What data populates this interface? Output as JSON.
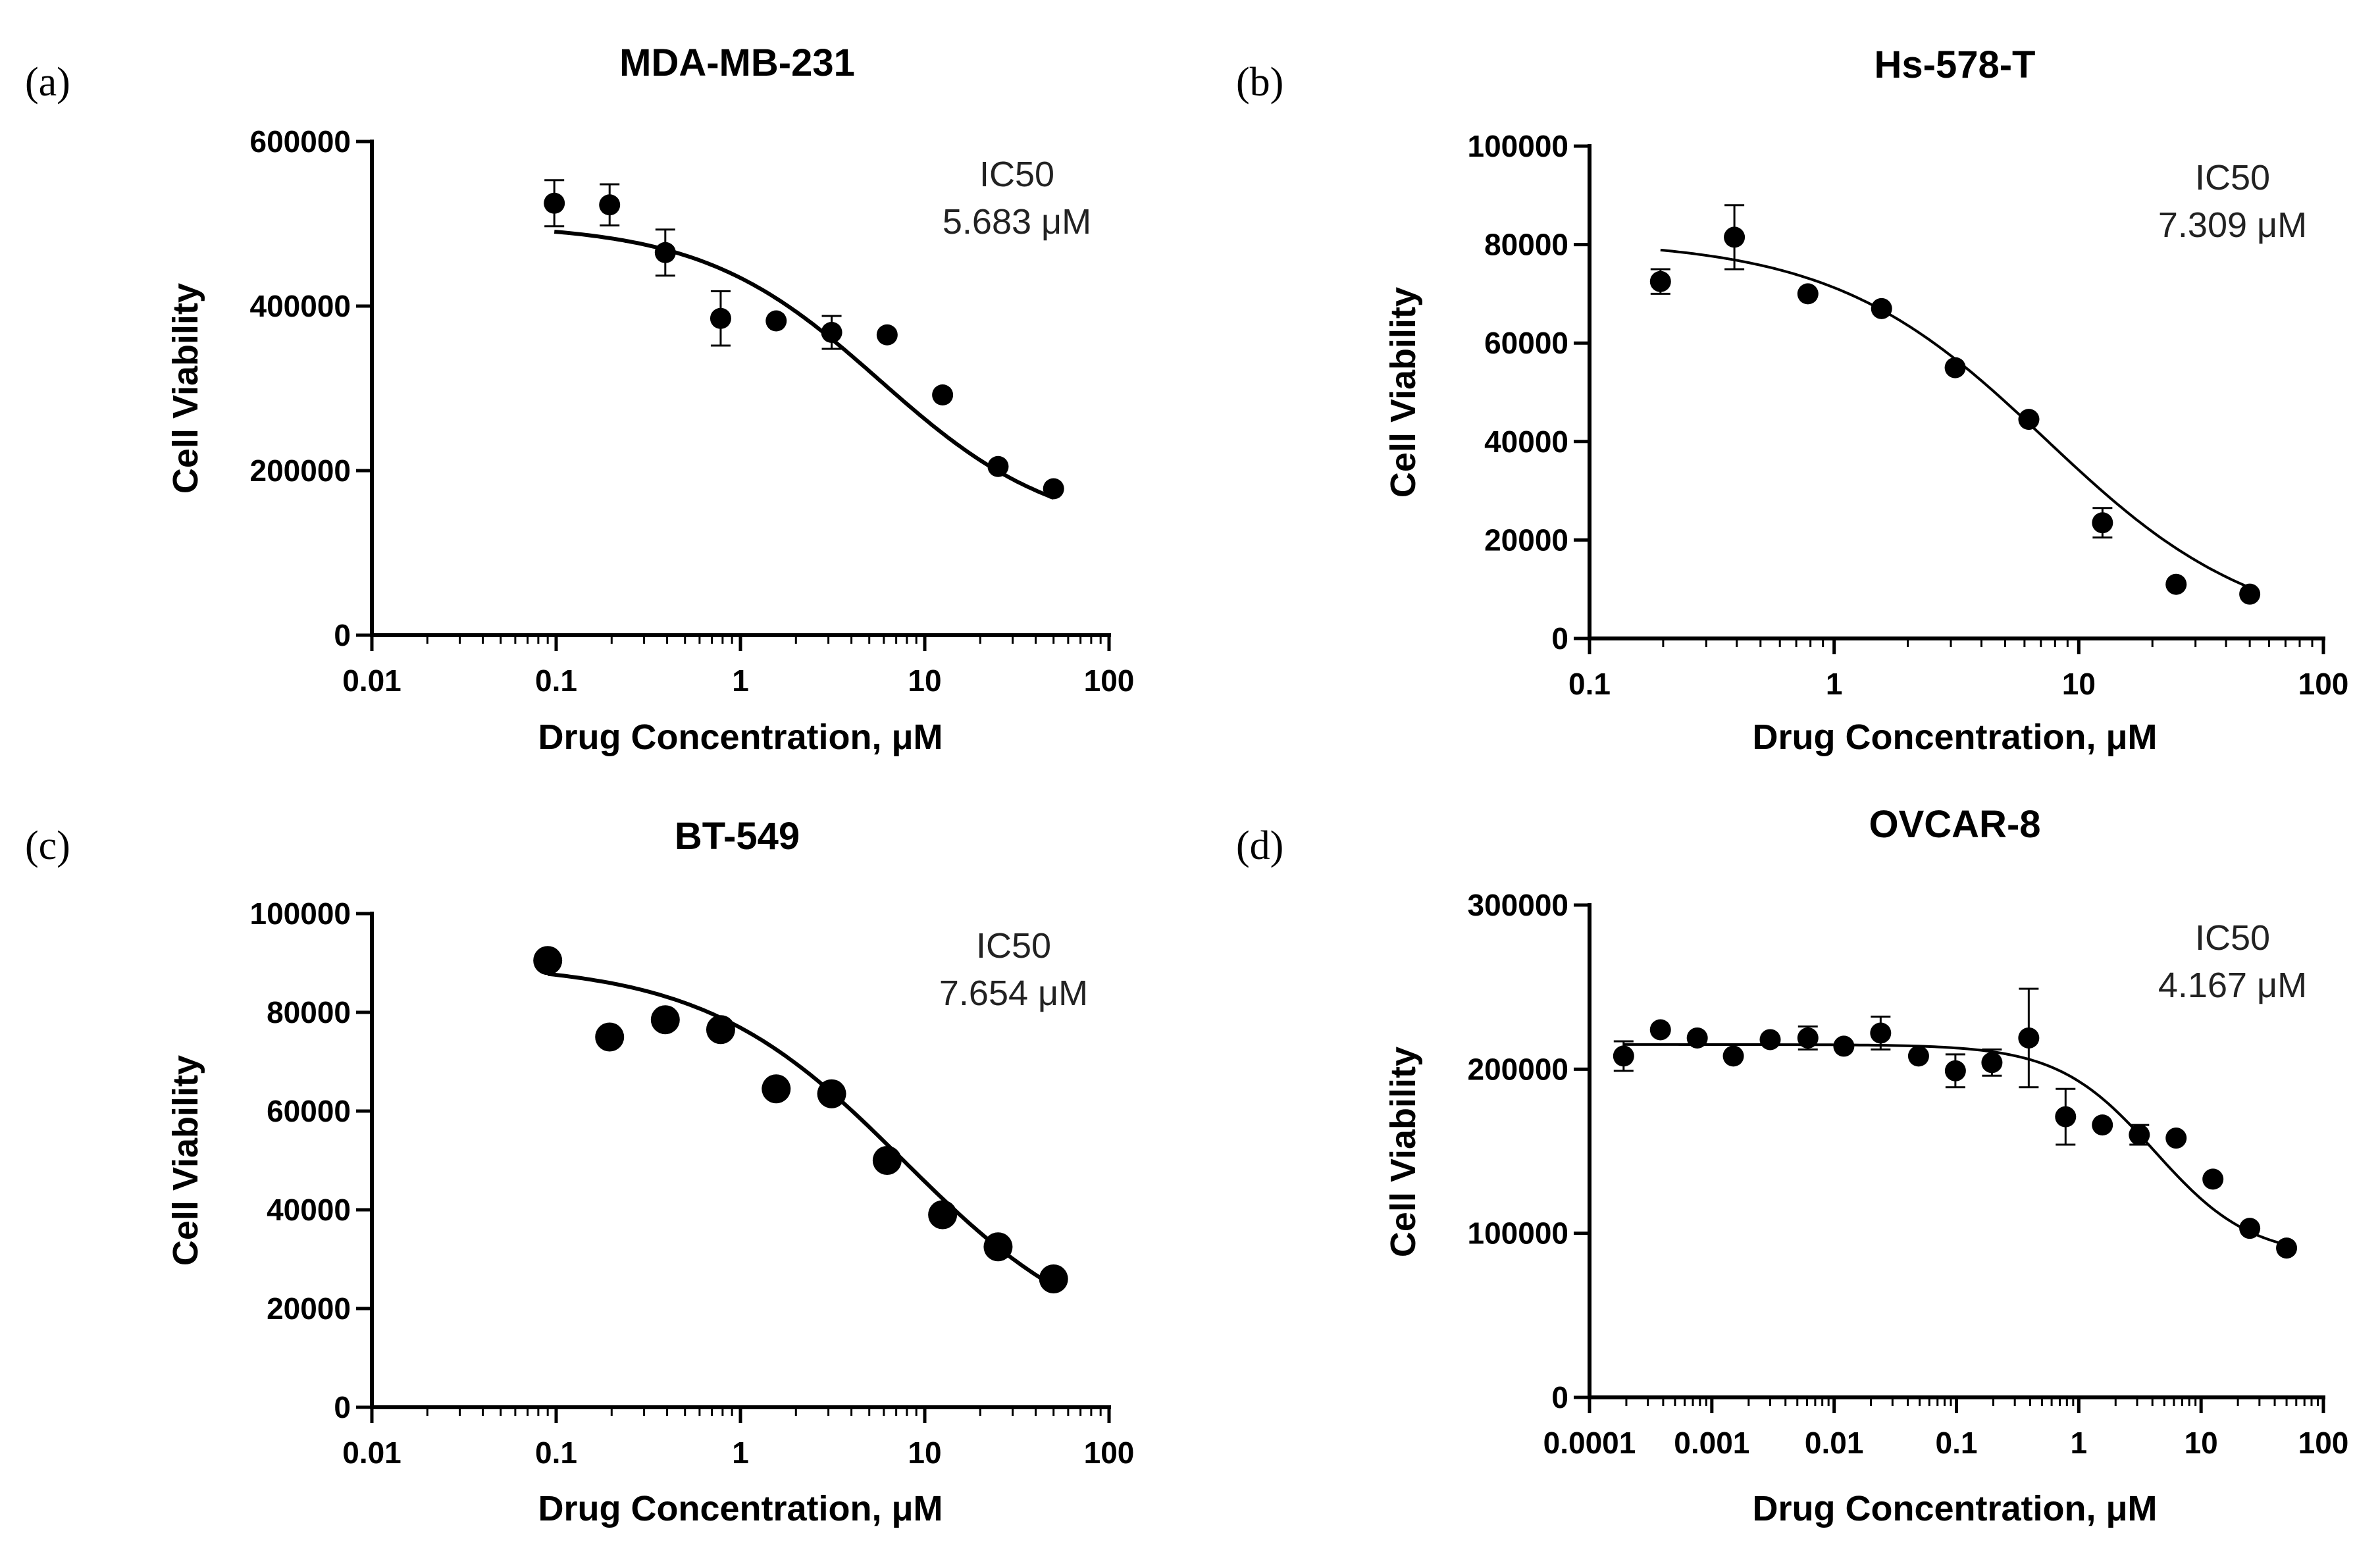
{
  "chart_data": [
    {
      "type": "scatter",
      "panel": "(a)",
      "title": "MDA-MB-231",
      "xlabel": "Drug Concentration, μM",
      "ylabel": "Cell Viability",
      "x_scale": "log",
      "xlim": [
        0.01,
        100
      ],
      "ylim": [
        0,
        600000
      ],
      "xticks": [
        0.01,
        0.1,
        1,
        10,
        100
      ],
      "xtick_labels": [
        "0.01",
        "0.1",
        "1",
        "10",
        "100"
      ],
      "yticks": [
        0,
        200000,
        400000,
        600000
      ],
      "ytick_labels": [
        "0",
        "200000",
        "400000",
        "600000"
      ],
      "annotation": [
        "IC50",
        "5.683 μM"
      ],
      "ic50": 5.683,
      "fit": {
        "top": 500000,
        "bottom": 120000,
        "hill": 0.9,
        "ec50": 5.683
      },
      "fit_range": [
        0.0977,
        50
      ],
      "x": [
        0.0977,
        0.195,
        0.391,
        0.781,
        1.5625,
        3.125,
        6.25,
        12.5,
        25,
        50
      ],
      "y": [
        525000,
        523000,
        465000,
        385000,
        382000,
        368000,
        365000,
        292000,
        205000,
        178000
      ],
      "err": [
        28000,
        25000,
        28000,
        33000,
        0,
        20000,
        0,
        0,
        0,
        0
      ]
    },
    {
      "type": "scatter",
      "panel": "(b)",
      "title": "Hs-578-T",
      "xlabel": "Drug Concentration, μM",
      "ylabel": "Cell Viability",
      "x_scale": "log",
      "xlim": [
        0.1,
        100
      ],
      "ylim": [
        0,
        100000
      ],
      "xticks": [
        0.1,
        1,
        10,
        100
      ],
      "xtick_labels": [
        "0.1",
        "1",
        "10",
        "100"
      ],
      "yticks": [
        0,
        20000,
        40000,
        60000,
        80000,
        100000
      ],
      "ytick_labels": [
        "0",
        "20000",
        "40000",
        "60000",
        "80000",
        "100000"
      ],
      "annotation": [
        "IC50",
        "7.309 μM"
      ],
      "ic50": 7.309,
      "fit": {
        "top": 81000,
        "bottom": 0,
        "hill": 1.0,
        "ec50": 7.309
      },
      "fit_range": [
        0.195,
        50
      ],
      "x": [
        0.195,
        0.391,
        0.781,
        1.5625,
        3.125,
        6.25,
        12.5,
        25,
        50
      ],
      "y": [
        72500,
        81500,
        70000,
        67000,
        55000,
        44500,
        23500,
        11000,
        9000
      ],
      "err": [
        2500,
        6500,
        0,
        0,
        0,
        0,
        3000,
        0,
        0
      ]
    },
    {
      "type": "scatter",
      "panel": "(c)",
      "title": "BT-549",
      "xlabel": "Drug Concentration, μM",
      "ylabel": "Cell Viability",
      "x_scale": "log",
      "xlim": [
        0.01,
        100
      ],
      "ylim": [
        0,
        100000
      ],
      "xticks": [
        0.01,
        0.1,
        1,
        10,
        100
      ],
      "xtick_labels": [
        "0.01",
        "0.1",
        "1",
        "10",
        "100"
      ],
      "yticks": [
        0,
        20000,
        40000,
        60000,
        80000,
        100000
      ],
      "ytick_labels": [
        "0",
        "20000",
        "40000",
        "60000",
        "80000",
        "100000"
      ],
      "annotation": [
        "IC50",
        "7.654 μM"
      ],
      "ic50": 7.654,
      "fit": {
        "top": 90000,
        "bottom": 10000,
        "hill": 0.8,
        "ec50": 7.654
      },
      "fit_range": [
        0.09,
        50
      ],
      "x": [
        0.09,
        0.195,
        0.391,
        0.781,
        1.5625,
        3.125,
        6.25,
        12.5,
        25,
        50
      ],
      "y": [
        90500,
        75000,
        78500,
        76500,
        64500,
        63500,
        50000,
        39000,
        32500,
        26000
      ],
      "err": [
        0,
        0,
        0,
        0,
        0,
        0,
        0,
        0,
        0,
        0
      ]
    },
    {
      "type": "scatter",
      "panel": "(d)",
      "title": "OVCAR-8",
      "xlabel": "Drug Concentration, μM",
      "ylabel": "Cell Viability",
      "x_scale": "log",
      "xlim": [
        0.0001,
        100
      ],
      "ylim": [
        0,
        300000
      ],
      "xticks": [
        0.0001,
        0.001,
        0.01,
        0.1,
        1,
        10,
        100
      ],
      "xtick_labels": [
        "0.0001",
        "0.001",
        "0.01",
        "0.1",
        "1",
        "10",
        "100"
      ],
      "yticks": [
        0,
        100000,
        200000,
        300000
      ],
      "ytick_labels": [
        "0",
        "100000",
        "200000",
        "300000"
      ],
      "annotation": [
        "IC50",
        "4.167 μM"
      ],
      "ic50": 4.167,
      "fit": {
        "top": 215000,
        "bottom": 85000,
        "hill": 1.1,
        "ec50": 4.167
      },
      "fit_range": [
        0.00019,
        50
      ],
      "x": [
        0.00019,
        0.00038,
        0.00076,
        0.0015,
        0.003,
        0.0061,
        0.012,
        0.024,
        0.049,
        0.098,
        0.195,
        0.39,
        0.78,
        1.56,
        3.125,
        6.25,
        12.5,
        25,
        50
      ],
      "y": [
        208000,
        224000,
        219000,
        208000,
        218000,
        219000,
        214000,
        222000,
        208000,
        199000,
        204000,
        219000,
        171000,
        166000,
        160000,
        158000,
        133000,
        103000,
        91000
      ],
      "err": [
        9000,
        0,
        0,
        0,
        0,
        7000,
        0,
        10000,
        0,
        10000,
        8000,
        30000,
        17000,
        0,
        6000,
        0,
        0,
        0,
        0
      ]
    }
  ]
}
